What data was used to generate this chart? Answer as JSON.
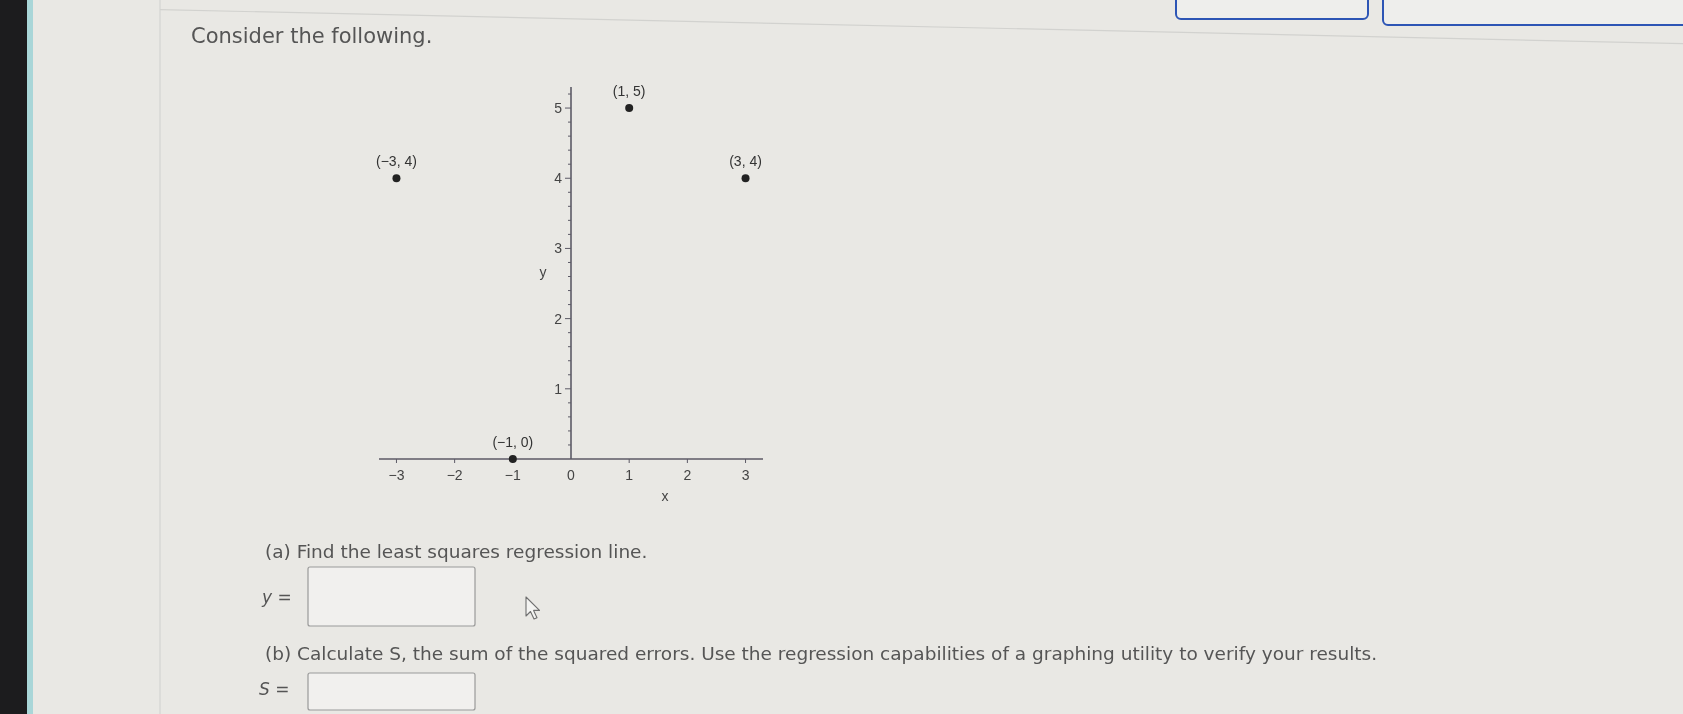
{
  "chart_data": {
    "type": "scatter",
    "title": "Consider the following.",
    "xlabel": "x",
    "ylabel": "y",
    "x": [
      -3,
      -1,
      1,
      3
    ],
    "series": [
      {
        "color": "#222222",
        "values": [
          4,
          0,
          5,
          4
        ]
      }
    ],
    "marker": "circle",
    "xlim": [
      -3.3,
      3.3
    ],
    "ylim": [
      0,
      5.3
    ],
    "xticks": [
      {
        "value": -3,
        "label": "−3"
      },
      {
        "value": -2,
        "label": "−2"
      },
      {
        "value": -1,
        "label": "−1"
      },
      0,
      1,
      2,
      3
    ],
    "yticks": [
      {
        "value": 0.2,
        "label": null
      },
      {
        "value": 0.4,
        "label": null
      },
      {
        "value": 0.6,
        "label": null
      },
      {
        "value": 0.8,
        "label": null
      },
      1,
      {
        "value": 1.2,
        "label": null
      },
      {
        "value": 1.4,
        "label": null
      },
      {
        "value": 1.6,
        "label": null
      },
      {
        "value": 1.8,
        "label": null
      },
      2,
      {
        "value": 2.2,
        "label": null
      },
      {
        "value": 2.4,
        "label": null
      },
      {
        "value": 2.6,
        "label": null
      },
      {
        "value": 2.8,
        "label": null
      },
      3,
      {
        "value": 3.2,
        "label": null
      },
      {
        "value": 3.4,
        "label": null
      },
      {
        "value": 3.6,
        "label": null
      },
      {
        "value": 3.8,
        "label": null
      },
      4,
      {
        "value": 4.2,
        "label": null
      },
      {
        "value": 4.4,
        "label": null
      },
      {
        "value": 4.6,
        "label": null
      },
      {
        "value": 4.8,
        "label": null
      },
      5,
      {
        "value": 5.2,
        "label": null
      }
    ],
    "annotations": [
      {
        "text": "(−3, 4)",
        "x": -3,
        "y": 4
      },
      {
        "text": "(−1, 0)",
        "x": -1,
        "y": 0
      },
      {
        "text": "(1, 5)",
        "x": 1,
        "y": 5
      },
      {
        "text": "(3, 4)",
        "x": 3,
        "y": 4
      },
      "(a) Find the least squares regression line.",
      "y =",
      "(b) Calculate S, the sum of the squared errors. Use the regression capabilities of a graphing utility to verify your results.",
      "S ="
    ]
  }
}
